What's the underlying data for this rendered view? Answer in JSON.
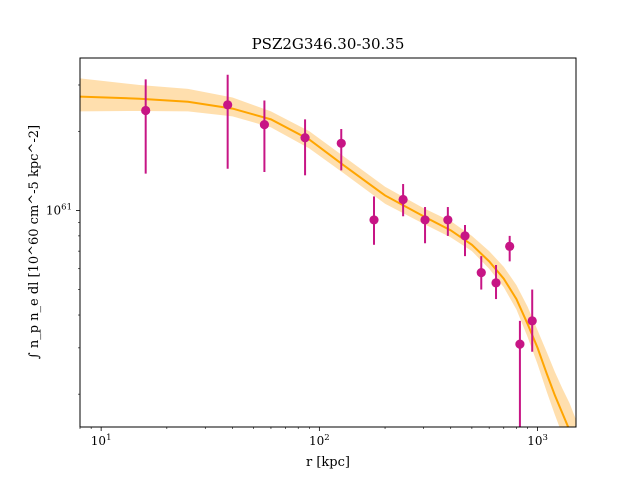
{
  "chart_data": {
    "type": "scatter",
    "title": "PSZ2G346.30-30.35",
    "xlabel": "r [kpc]",
    "ylabel": "∫ n_p n_e dl [10^60 cm^-5 kpc^-2]",
    "x_scale": "log",
    "y_scale": "log",
    "xlim": [
      8,
      1500
    ],
    "ylim": [
      15,
      380
    ],
    "x_ticks": [
      {
        "value": 10,
        "base": "10",
        "exp": "1"
      },
      {
        "value": 100,
        "base": "10",
        "exp": "2"
      },
      {
        "value": 1000,
        "base": "10",
        "exp": "3"
      }
    ],
    "y_ticks": [
      {
        "value": 100,
        "base": "10",
        "exp": "61"
      }
    ],
    "colors": {
      "points": "#c71585",
      "model": "#ffa500",
      "band": "#ffd9a0"
    },
    "series": [
      {
        "type": "errorbar",
        "points": [
          {
            "x": 16,
            "y": 240,
            "ylo": 138,
            "yhi": 315
          },
          {
            "x": 38,
            "y": 252,
            "ylo": 144,
            "yhi": 328
          },
          {
            "x": 56,
            "y": 212,
            "ylo": 140,
            "yhi": 262
          },
          {
            "x": 86,
            "y": 189,
            "ylo": 136,
            "yhi": 222
          },
          {
            "x": 126,
            "y": 180,
            "ylo": 142,
            "yhi": 204
          },
          {
            "x": 178,
            "y": 92,
            "ylo": 74,
            "yhi": 113
          },
          {
            "x": 242,
            "y": 110,
            "ylo": 95,
            "yhi": 126
          },
          {
            "x": 305,
            "y": 92,
            "ylo": 75,
            "yhi": 103
          },
          {
            "x": 388,
            "y": 92,
            "ylo": 80,
            "yhi": 103
          },
          {
            "x": 465,
            "y": 80,
            "ylo": 67,
            "yhi": 88
          },
          {
            "x": 552,
            "y": 58,
            "ylo": 50,
            "yhi": 67
          },
          {
            "x": 645,
            "y": 53,
            "ylo": 46,
            "yhi": 62
          },
          {
            "x": 745,
            "y": 73,
            "ylo": 64,
            "yhi": 80
          },
          {
            "x": 830,
            "y": 31,
            "ylo": 15,
            "yhi": 38
          },
          {
            "x": 945,
            "y": 38,
            "ylo": 29,
            "yhi": 50
          }
        ]
      },
      {
        "type": "line",
        "band": true,
        "points": [
          {
            "x": 8,
            "y": 271,
            "lo": 238,
            "hi": 318
          },
          {
            "x": 15,
            "y": 266,
            "lo": 239,
            "hi": 300
          },
          {
            "x": 25,
            "y": 259,
            "lo": 238,
            "hi": 290
          },
          {
            "x": 40,
            "y": 244,
            "lo": 228,
            "hi": 269
          },
          {
            "x": 60,
            "y": 222,
            "lo": 207,
            "hi": 238
          },
          {
            "x": 90,
            "y": 186,
            "lo": 172,
            "hi": 200
          },
          {
            "x": 130,
            "y": 148,
            "lo": 138,
            "hi": 160
          },
          {
            "x": 200,
            "y": 114,
            "lo": 106,
            "hi": 123
          },
          {
            "x": 300,
            "y": 95,
            "lo": 89,
            "hi": 102
          },
          {
            "x": 400,
            "y": 84,
            "lo": 79,
            "hi": 91
          },
          {
            "x": 500,
            "y": 74,
            "lo": 70,
            "hi": 80
          },
          {
            "x": 600,
            "y": 64,
            "lo": 60,
            "hi": 70
          },
          {
            "x": 700,
            "y": 55,
            "lo": 51,
            "hi": 61
          },
          {
            "x": 800,
            "y": 46,
            "lo": 42,
            "hi": 52
          },
          {
            "x": 900,
            "y": 37,
            "lo": 33,
            "hi": 43
          },
          {
            "x": 1000,
            "y": 30,
            "lo": 26,
            "hi": 35
          },
          {
            "x": 1100,
            "y": 24,
            "lo": 20.5,
            "hi": 29
          },
          {
            "x": 1200,
            "y": 19.8,
            "lo": 16.7,
            "hi": 24.3
          },
          {
            "x": 1300,
            "y": 16.9,
            "lo": 14,
            "hi": 21
          },
          {
            "x": 1400,
            "y": 14.6,
            "lo": 12,
            "hi": 18.5
          },
          {
            "x": 1500,
            "y": 12.6,
            "lo": 10,
            "hi": 16
          }
        ]
      }
    ]
  }
}
